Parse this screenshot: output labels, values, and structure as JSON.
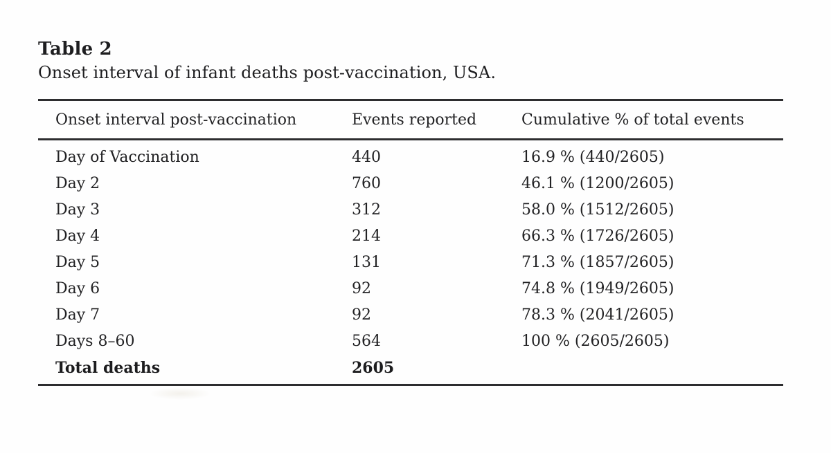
{
  "table": {
    "label": "Table 2",
    "caption": "Onset interval of infant deaths post-vaccination, USA.",
    "columns": [
      "Onset interval post-vaccination",
      "Events reported",
      "Cumulative % of total events"
    ],
    "rows": [
      {
        "interval": "Day of Vaccination",
        "events": "440",
        "cumulative": "16.9 % (440/2605)"
      },
      {
        "interval": "Day 2",
        "events": "760",
        "cumulative": "46.1 % (1200/2605)"
      },
      {
        "interval": "Day 3",
        "events": "312",
        "cumulative": "58.0 % (1512/2605)"
      },
      {
        "interval": "Day 4",
        "events": "214",
        "cumulative": "66.3 % (1726/2605)"
      },
      {
        "interval": "Day 5",
        "events": "131",
        "cumulative": "71.3 % (1857/2605)"
      },
      {
        "interval": "Day 6",
        "events": "92",
        "cumulative": "74.8 % (1949/2605)"
      },
      {
        "interval": "Day 7",
        "events": "92",
        "cumulative": "78.3 % (2041/2605)"
      },
      {
        "interval": "Days 8–60",
        "events": "564",
        "cumulative": "100 % (2605/2605)"
      },
      {
        "interval": "Total deaths",
        "events": "2605",
        "cumulative": ""
      }
    ],
    "colors": {
      "text": "#222224",
      "rule": "#2d2d2f",
      "background": "#fefefe"
    }
  }
}
